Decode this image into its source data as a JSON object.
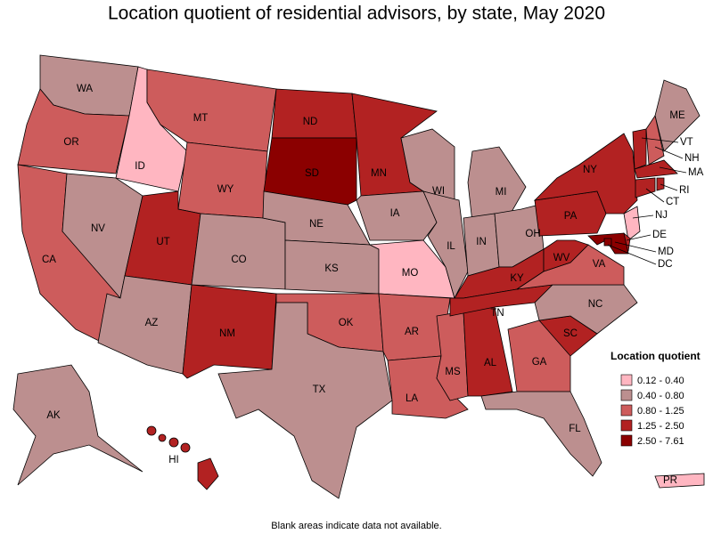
{
  "title": "Location quotient of residential advisors, by state, May 2020",
  "footnote": "Blank areas indicate data not available.",
  "legend": {
    "title": "Location quotient",
    "items": [
      {
        "label": "0.12 - 0.40",
        "color": "#ffb6c1"
      },
      {
        "label": "0.40 - 0.80",
        "color": "#bc8f8f"
      },
      {
        "label": "0.80 - 1.25",
        "color": "#cd5c5c"
      },
      {
        "label": "1.25 - 2.50",
        "color": "#b22222"
      },
      {
        "label": "2.50 - 7.61",
        "color": "#8b0000"
      }
    ]
  },
  "states": [
    {
      "label": "WA",
      "color": "#bc8f8f"
    },
    {
      "label": "OR",
      "color": "#cd5c5c"
    },
    {
      "label": "CA",
      "color": "#cd5c5c"
    },
    {
      "label": "ID",
      "color": "#ffb6c1"
    },
    {
      "label": "NV",
      "color": "#bc8f8f"
    },
    {
      "label": "MT",
      "color": "#cd5c5c"
    },
    {
      "label": "WY",
      "color": "#cd5c5c"
    },
    {
      "label": "UT",
      "color": "#b22222"
    },
    {
      "label": "AZ",
      "color": "#bc8f8f"
    },
    {
      "label": "CO",
      "color": "#bc8f8f"
    },
    {
      "label": "NM",
      "color": "#b22222"
    },
    {
      "label": "ND",
      "color": "#b22222"
    },
    {
      "label": "SD",
      "color": "#8b0000"
    },
    {
      "label": "NE",
      "color": "#bc8f8f"
    },
    {
      "label": "KS",
      "color": "#bc8f8f"
    },
    {
      "label": "OK",
      "color": "#cd5c5c"
    },
    {
      "label": "TX",
      "color": "#bc8f8f"
    },
    {
      "label": "MN",
      "color": "#b22222"
    },
    {
      "label": "IA",
      "color": "#bc8f8f"
    },
    {
      "label": "MO",
      "color": "#ffb6c1"
    },
    {
      "label": "AR",
      "color": "#cd5c5c"
    },
    {
      "label": "LA",
      "color": "#cd5c5c"
    },
    {
      "label": "MS",
      "color": "#cd5c5c"
    },
    {
      "label": "AL",
      "color": "#b22222"
    },
    {
      "label": "WI",
      "color": "#bc8f8f"
    },
    {
      "label": "IL",
      "color": "#bc8f8f"
    },
    {
      "label": "MI",
      "color": "#bc8f8f"
    },
    {
      "label": "IN",
      "color": "#bc8f8f"
    },
    {
      "label": "OH",
      "color": "#bc8f8f"
    },
    {
      "label": "KY",
      "color": "#b22222"
    },
    {
      "label": "TN",
      "color": "#b22222"
    },
    {
      "label": "GA",
      "color": "#cd5c5c"
    },
    {
      "label": "FL",
      "color": "#bc8f8f"
    },
    {
      "label": "SC",
      "color": "#b22222"
    },
    {
      "label": "NC",
      "color": "#bc8f8f"
    },
    {
      "label": "VA",
      "color": "#cd5c5c"
    },
    {
      "label": "WV",
      "color": "#b22222"
    },
    {
      "label": "PA",
      "color": "#b22222"
    },
    {
      "label": "NY",
      "color": "#b22222"
    },
    {
      "label": "ME",
      "color": "#bc8f8f"
    },
    {
      "label": "AK",
      "color": "#bc8f8f"
    },
    {
      "label": "HI",
      "color": "#b22222"
    },
    {
      "label": "PR",
      "color": "#ffb6c1"
    },
    {
      "label": "VT",
      "color": "#b22222"
    },
    {
      "label": "NH",
      "color": "#cd5c5c"
    },
    {
      "label": "MA",
      "color": "#b22222"
    },
    {
      "label": "RI",
      "color": "#b22222"
    },
    {
      "label": "CT",
      "color": "#b22222"
    },
    {
      "label": "NJ",
      "color": "#ffb6c1"
    },
    {
      "label": "DE",
      "color": "#b22222"
    },
    {
      "label": "MD",
      "color": "#8b0000"
    },
    {
      "label": "DC",
      "color": "#8b0000"
    }
  ]
}
